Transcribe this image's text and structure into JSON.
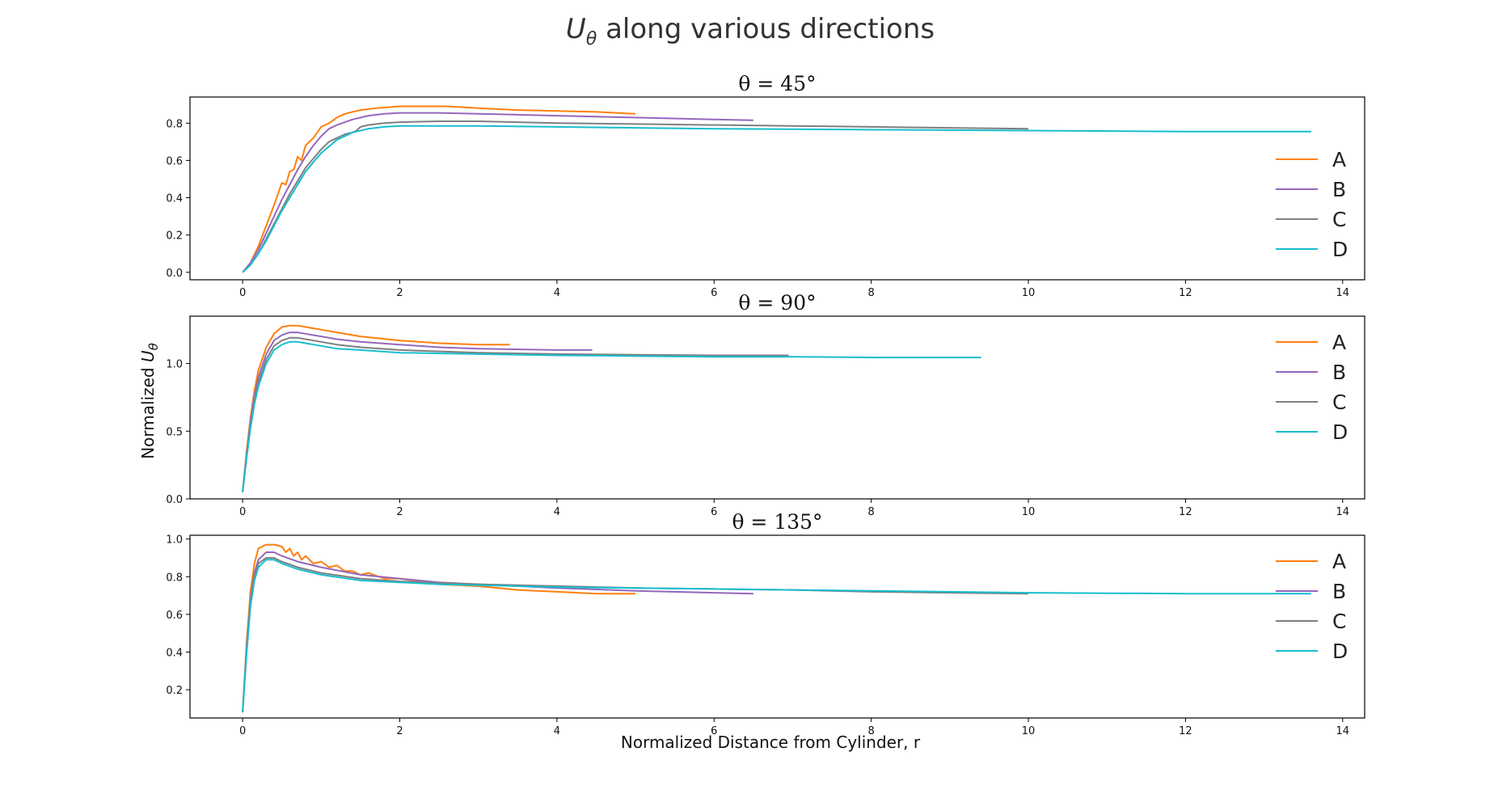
{
  "figure": {
    "suptitle_prefix": "U",
    "suptitle_sub": "θ",
    "suptitle_rest": " along various directions",
    "ylabel_prefix": "Normalized ",
    "ylabel_var": "U",
    "ylabel_sub": "θ",
    "xlabel": "Normalized Distance from Cylinder, r"
  },
  "colors": {
    "A": "#ff7f0e",
    "B": "#9467bd",
    "C": "#7f7f7f",
    "D": "#17becf"
  },
  "chart_data": [
    {
      "type": "line",
      "title": "θ = 45°",
      "xlim": [
        -0.67,
        14.28
      ],
      "ylim": [
        -0.04,
        0.94
      ],
      "xticks": [
        0,
        2,
        4,
        6,
        8,
        10,
        12,
        14
      ],
      "yticks": [
        0.0,
        0.2,
        0.4,
        0.6,
        0.8
      ],
      "ytick_labels": [
        "0.0",
        "0.2",
        "0.4",
        "0.6",
        "0.8"
      ],
      "legend": "center-right",
      "series": [
        {
          "name": "A",
          "x": [
            0,
            0.1,
            0.2,
            0.3,
            0.4,
            0.5,
            0.55,
            0.6,
            0.65,
            0.7,
            0.75,
            0.8,
            0.9,
            1.0,
            1.1,
            1.2,
            1.3,
            1.4,
            1.5,
            1.7,
            2.0,
            2.3,
            2.6,
            3.0,
            3.5,
            4.0,
            4.5,
            5.0
          ],
          "y": [
            0.0,
            0.05,
            0.14,
            0.25,
            0.36,
            0.48,
            0.47,
            0.54,
            0.55,
            0.62,
            0.6,
            0.68,
            0.72,
            0.78,
            0.8,
            0.83,
            0.85,
            0.86,
            0.87,
            0.88,
            0.89,
            0.89,
            0.89,
            0.88,
            0.87,
            0.865,
            0.86,
            0.85
          ]
        },
        {
          "name": "B",
          "x": [
            0,
            0.1,
            0.2,
            0.3,
            0.4,
            0.5,
            0.6,
            0.7,
            0.8,
            0.9,
            1.0,
            1.1,
            1.2,
            1.4,
            1.6,
            1.8,
            2.0,
            2.5,
            3.0,
            3.5,
            4.0,
            5.0,
            6.0,
            6.5
          ],
          "y": [
            0.0,
            0.05,
            0.12,
            0.21,
            0.3,
            0.39,
            0.47,
            0.55,
            0.62,
            0.68,
            0.73,
            0.77,
            0.79,
            0.82,
            0.84,
            0.85,
            0.855,
            0.855,
            0.85,
            0.845,
            0.84,
            0.83,
            0.82,
            0.815
          ]
        },
        {
          "name": "C",
          "x": [
            0,
            0.1,
            0.2,
            0.3,
            0.4,
            0.5,
            0.6,
            0.7,
            0.8,
            0.9,
            1.0,
            1.1,
            1.2,
            1.3,
            1.4,
            1.45,
            1.5,
            1.6,
            1.8,
            2.0,
            2.5,
            3.0,
            4.0,
            5.0,
            6.0,
            7.0,
            8.0,
            9.0,
            10.0
          ],
          "y": [
            0.0,
            0.04,
            0.1,
            0.18,
            0.26,
            0.34,
            0.42,
            0.49,
            0.56,
            0.61,
            0.66,
            0.7,
            0.72,
            0.74,
            0.75,
            0.76,
            0.78,
            0.79,
            0.8,
            0.805,
            0.81,
            0.81,
            0.8,
            0.795,
            0.79,
            0.785,
            0.78,
            0.775,
            0.77
          ]
        },
        {
          "name": "D",
          "x": [
            0,
            0.1,
            0.2,
            0.3,
            0.4,
            0.5,
            0.6,
            0.7,
            0.8,
            0.9,
            1.0,
            1.2,
            1.4,
            1.6,
            1.8,
            2.0,
            2.5,
            3.0,
            4.0,
            5.0,
            6.0,
            8.0,
            10.0,
            12.0,
            13.0,
            13.6
          ],
          "y": [
            0.0,
            0.04,
            0.1,
            0.17,
            0.25,
            0.33,
            0.4,
            0.47,
            0.54,
            0.59,
            0.64,
            0.71,
            0.75,
            0.77,
            0.78,
            0.785,
            0.785,
            0.785,
            0.78,
            0.775,
            0.77,
            0.765,
            0.76,
            0.755,
            0.755,
            0.755
          ]
        }
      ]
    },
    {
      "type": "line",
      "title": "θ = 90°",
      "xlim": [
        -0.67,
        14.28
      ],
      "ylim": [
        0.0,
        1.35
      ],
      "xticks": [
        0,
        2,
        4,
        6,
        8,
        10,
        12,
        14
      ],
      "yticks": [
        0.0,
        0.5,
        1.0
      ],
      "ytick_labels": [
        "0.0",
        "0.5",
        "1.0"
      ],
      "legend": "upper-right",
      "series": [
        {
          "name": "A",
          "x": [
            0,
            0.05,
            0.1,
            0.15,
            0.2,
            0.3,
            0.4,
            0.5,
            0.6,
            0.7,
            0.8,
            1.0,
            1.2,
            1.5,
            2.0,
            2.5,
            3.0,
            3.4
          ],
          "y": [
            0.05,
            0.35,
            0.6,
            0.8,
            0.95,
            1.12,
            1.22,
            1.27,
            1.28,
            1.28,
            1.27,
            1.25,
            1.23,
            1.2,
            1.17,
            1.15,
            1.14,
            1.14
          ]
        },
        {
          "name": "B",
          "x": [
            0,
            0.05,
            0.1,
            0.15,
            0.2,
            0.3,
            0.4,
            0.5,
            0.6,
            0.7,
            0.8,
            1.0,
            1.2,
            1.5,
            2.0,
            2.5,
            3.0,
            4.0,
            4.45
          ],
          "y": [
            0.05,
            0.33,
            0.57,
            0.76,
            0.9,
            1.07,
            1.17,
            1.21,
            1.23,
            1.23,
            1.22,
            1.2,
            1.18,
            1.16,
            1.14,
            1.12,
            1.11,
            1.1,
            1.1
          ]
        },
        {
          "name": "C",
          "x": [
            0,
            0.05,
            0.1,
            0.15,
            0.2,
            0.3,
            0.4,
            0.5,
            0.6,
            0.7,
            0.8,
            1.0,
            1.2,
            1.5,
            2.0,
            3.0,
            4.0,
            5.0,
            6.0,
            6.95
          ],
          "y": [
            0.05,
            0.31,
            0.54,
            0.72,
            0.86,
            1.03,
            1.13,
            1.17,
            1.19,
            1.19,
            1.18,
            1.16,
            1.14,
            1.12,
            1.1,
            1.08,
            1.07,
            1.065,
            1.06,
            1.06
          ]
        },
        {
          "name": "D",
          "x": [
            0,
            0.05,
            0.1,
            0.15,
            0.2,
            0.3,
            0.4,
            0.5,
            0.6,
            0.7,
            0.8,
            1.0,
            1.2,
            1.5,
            2.0,
            3.0,
            4.0,
            5.0,
            6.0,
            7.0,
            8.0,
            9.0,
            9.4
          ],
          "y": [
            0.05,
            0.3,
            0.52,
            0.7,
            0.83,
            1.0,
            1.1,
            1.14,
            1.16,
            1.16,
            1.15,
            1.13,
            1.11,
            1.1,
            1.08,
            1.07,
            1.06,
            1.055,
            1.05,
            1.05,
            1.045,
            1.045,
            1.045
          ]
        }
      ]
    },
    {
      "type": "line",
      "title": "θ = 135°",
      "xlim": [
        -0.67,
        14.28
      ],
      "ylim": [
        0.05,
        1.02
      ],
      "xticks": [
        0,
        2,
        4,
        6,
        8,
        10,
        12,
        14
      ],
      "yticks": [
        0.2,
        0.4,
        0.6,
        0.8,
        1.0
      ],
      "ytick_labels": [
        "0.2",
        "0.4",
        "0.6",
        "0.8",
        "1.0"
      ],
      "legend": "upper-right",
      "series": [
        {
          "name": "A",
          "x": [
            0,
            0.05,
            0.1,
            0.15,
            0.2,
            0.3,
            0.4,
            0.5,
            0.55,
            0.6,
            0.65,
            0.7,
            0.75,
            0.8,
            0.9,
            1.0,
            1.1,
            1.2,
            1.3,
            1.4,
            1.5,
            1.6,
            1.8,
            2.0,
            2.5,
            3.0,
            3.5,
            4.0,
            4.5,
            5.0
          ],
          "y": [
            0.08,
            0.45,
            0.72,
            0.87,
            0.95,
            0.97,
            0.97,
            0.96,
            0.93,
            0.95,
            0.91,
            0.93,
            0.89,
            0.91,
            0.87,
            0.88,
            0.85,
            0.86,
            0.83,
            0.83,
            0.81,
            0.82,
            0.79,
            0.79,
            0.76,
            0.75,
            0.73,
            0.72,
            0.71,
            0.71
          ]
        },
        {
          "name": "B",
          "x": [
            0,
            0.05,
            0.1,
            0.15,
            0.2,
            0.3,
            0.4,
            0.5,
            0.7,
            1.0,
            1.5,
            2.0,
            2.5,
            3.0,
            4.0,
            5.0,
            6.0,
            6.5
          ],
          "y": [
            0.08,
            0.42,
            0.68,
            0.82,
            0.89,
            0.93,
            0.93,
            0.91,
            0.88,
            0.85,
            0.81,
            0.79,
            0.77,
            0.76,
            0.74,
            0.725,
            0.715,
            0.71
          ]
        },
        {
          "name": "C",
          "x": [
            0,
            0.05,
            0.1,
            0.15,
            0.2,
            0.3,
            0.4,
            0.5,
            0.7,
            1.0,
            1.5,
            2.0,
            3.0,
            4.0,
            5.0,
            6.0,
            7.0,
            8.0,
            9.0,
            10.0
          ],
          "y": [
            0.08,
            0.4,
            0.66,
            0.8,
            0.87,
            0.9,
            0.9,
            0.88,
            0.85,
            0.82,
            0.79,
            0.775,
            0.76,
            0.75,
            0.74,
            0.735,
            0.73,
            0.72,
            0.715,
            0.71
          ]
        },
        {
          "name": "D",
          "x": [
            0,
            0.05,
            0.1,
            0.15,
            0.2,
            0.3,
            0.4,
            0.5,
            0.7,
            1.0,
            1.5,
            2.0,
            2.5,
            3.0,
            4.0,
            5.0,
            6.0,
            7.0,
            8.0,
            10.0,
            12.0,
            13.0,
            13.6
          ],
          "y": [
            0.08,
            0.39,
            0.64,
            0.78,
            0.85,
            0.89,
            0.89,
            0.87,
            0.84,
            0.81,
            0.78,
            0.77,
            0.76,
            0.755,
            0.745,
            0.74,
            0.735,
            0.73,
            0.725,
            0.715,
            0.71,
            0.71,
            0.71
          ]
        }
      ]
    }
  ]
}
